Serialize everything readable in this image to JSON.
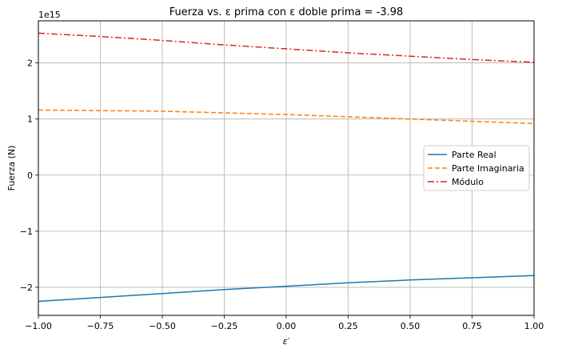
{
  "chart_data": {
    "type": "line",
    "title": "Fuerza vs. ε prima con ε doble prima = -3.98",
    "xlabel": "ε′",
    "ylabel": "Fuerza (N)",
    "offset_label": "1e15",
    "xlim": [
      -1.0,
      1.0
    ],
    "ylim": [
      -2.5,
      2.75
    ],
    "xticks": [
      -1.0,
      -0.75,
      -0.5,
      -0.25,
      0.0,
      0.25,
      0.5,
      0.75,
      1.0
    ],
    "xtick_labels": [
      "−1.00",
      "−0.75",
      "−0.50",
      "−0.25",
      "0.00",
      "0.25",
      "0.50",
      "0.75",
      "1.00"
    ],
    "yticks": [
      -2,
      -1,
      0,
      1,
      2
    ],
    "ytick_labels": [
      "−2",
      "−1",
      "0",
      "1",
      "2"
    ],
    "grid": true,
    "legend_position": "center-right",
    "x": [
      -1.0,
      -0.75,
      -0.5,
      -0.25,
      0.0,
      0.25,
      0.5,
      0.75,
      1.0
    ],
    "series": [
      {
        "name": "Parte Real",
        "color": "#1f77b4",
        "style": "solid",
        "values": [
          -2.25,
          -2.18,
          -2.11,
          -2.04,
          -1.98,
          -1.92,
          -1.87,
          -1.83,
          -1.79
        ]
      },
      {
        "name": "Parte Imaginaria",
        "color": "#ff7f0e",
        "style": "dashed",
        "values": [
          1.16,
          1.15,
          1.14,
          1.11,
          1.08,
          1.04,
          1.0,
          0.96,
          0.92
        ]
      },
      {
        "name": "Módulo",
        "color": "#d62728",
        "style": "dashdot",
        "values": [
          2.53,
          2.47,
          2.4,
          2.32,
          2.25,
          2.18,
          2.12,
          2.06,
          2.01
        ]
      }
    ]
  }
}
